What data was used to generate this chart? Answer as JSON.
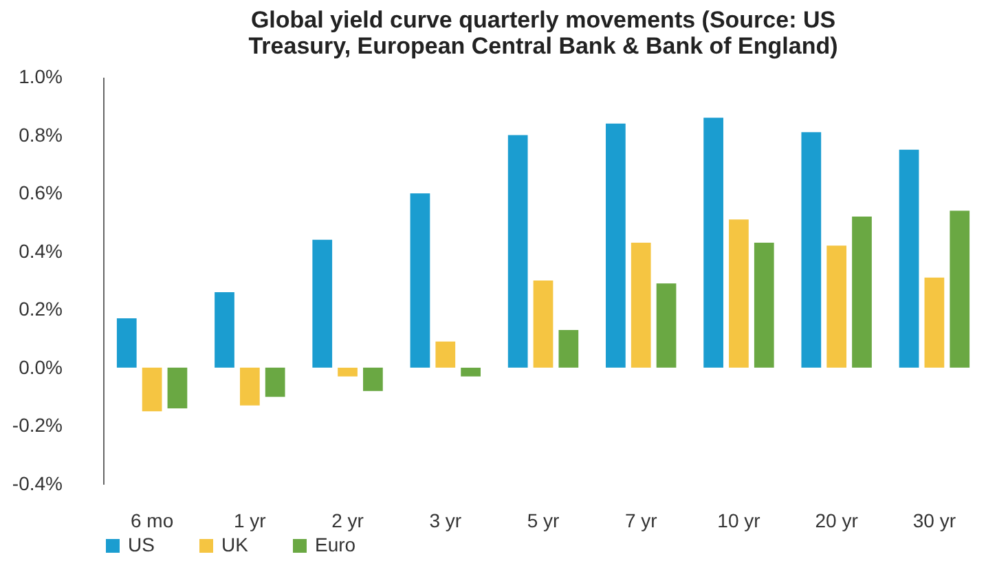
{
  "chart_data": {
    "type": "bar",
    "title": "Global yield curve quarterly movements (Source: US Treasury, European Central Bank & Bank of England)",
    "categories": [
      "6 mo",
      "1 yr",
      "2 yr",
      "3 yr",
      "5 yr",
      "7 yr",
      "10 yr",
      "20 yr",
      "30 yr"
    ],
    "series": [
      {
        "name": "US",
        "color": "#1b9dd0",
        "values": [
          0.17,
          0.26,
          0.44,
          0.6,
          0.8,
          0.84,
          0.86,
          0.81,
          0.75
        ]
      },
      {
        "name": "UK",
        "color": "#f5c542",
        "values": [
          -0.15,
          -0.13,
          -0.03,
          0.09,
          0.3,
          0.43,
          0.51,
          0.42,
          0.31
        ]
      },
      {
        "name": "Euro",
        "color": "#6aa843",
        "values": [
          -0.14,
          -0.1,
          -0.08,
          -0.03,
          0.13,
          0.29,
          0.43,
          0.52,
          0.54
        ]
      }
    ],
    "ylim": [
      -0.4,
      1.0
    ],
    "yticks": [
      {
        "value": -0.4,
        "label": "-0.4%"
      },
      {
        "value": -0.2,
        "label": "-0.2%"
      },
      {
        "value": 0,
        "label": "0.0%"
      },
      {
        "value": 0.2,
        "label": "0.2%"
      },
      {
        "value": 0.4,
        "label": "0.4%"
      },
      {
        "value": 0.6,
        "label": "0.6%"
      },
      {
        "value": 0.8,
        "label": "0.8%"
      },
      {
        "value": 1.0,
        "label": "1.0%"
      }
    ],
    "legend": "bottom",
    "grid": false
  }
}
